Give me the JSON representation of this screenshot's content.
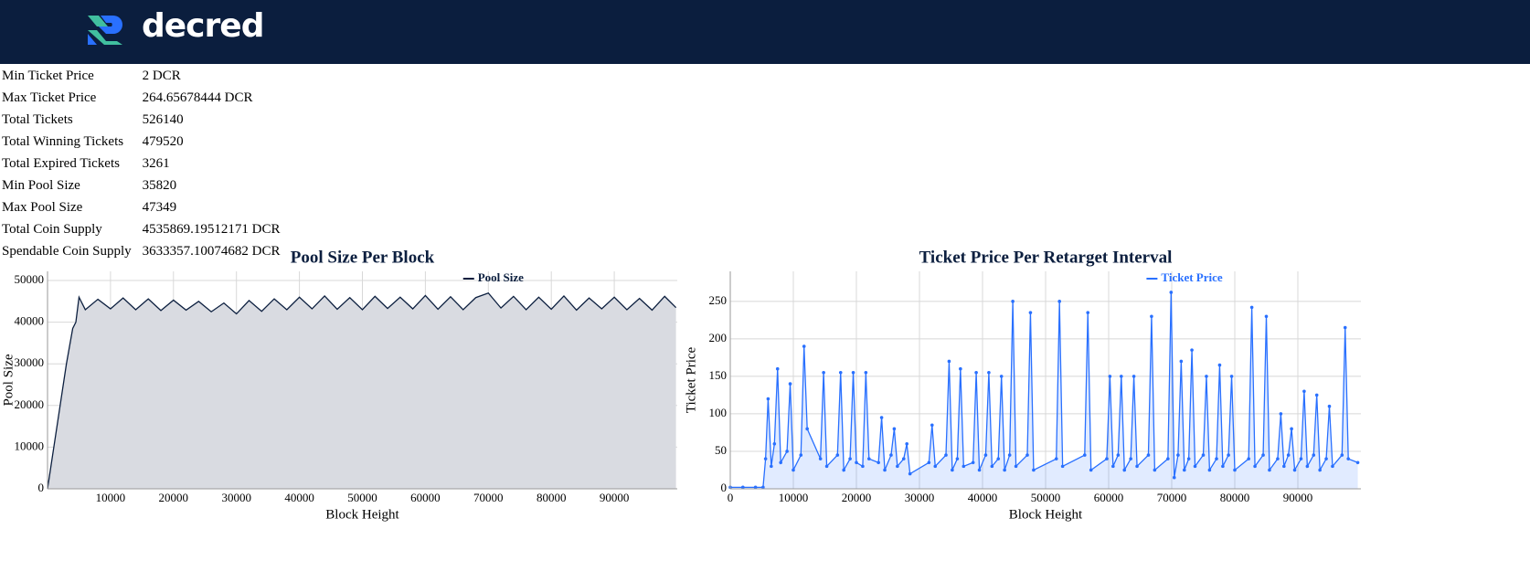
{
  "header": {
    "logo_text": "decred"
  },
  "stats": {
    "rows": [
      [
        "Min Ticket Price",
        "2 DCR"
      ],
      [
        "Max Ticket Price",
        "264.65678444 DCR"
      ],
      [
        "Total Tickets",
        "526140"
      ],
      [
        "Total Winning Tickets",
        "479520"
      ],
      [
        "Total Expired Tickets",
        "3261"
      ],
      [
        "Min Pool Size",
        "35820"
      ],
      [
        "Max Pool Size",
        "47349"
      ],
      [
        "Total Coin Supply",
        "4535869.19512171 DCR"
      ],
      [
        "Spendable Coin Supply",
        "3633357.10074682 DCR"
      ]
    ]
  },
  "chart_data": [
    {
      "type": "area",
      "title": "Pool Size Per Block",
      "x_label": "Block Height",
      "y_label": "Pool Size",
      "xlim": [
        0,
        100000
      ],
      "ylim": [
        0,
        52200
      ],
      "xticks": [
        10000,
        20000,
        30000,
        40000,
        50000,
        60000,
        70000,
        80000,
        90000
      ],
      "yticks": [
        0,
        10000,
        20000,
        30000,
        40000,
        50000
      ],
      "grid": true,
      "legend": "top-right",
      "markers": false,
      "x": [
        0,
        1000,
        2000,
        3000,
        4000,
        4500,
        5000,
        6000,
        8000,
        10000,
        12000,
        14000,
        16000,
        18000,
        20000,
        22000,
        24000,
        26000,
        28000,
        30000,
        32000,
        34000,
        36000,
        38000,
        40000,
        42000,
        44000,
        46000,
        48000,
        50000,
        52000,
        54000,
        56000,
        58000,
        60000,
        62000,
        64000,
        66000,
        68000,
        70000,
        72000,
        74000,
        76000,
        78000,
        80000,
        82000,
        84000,
        86000,
        88000,
        90000,
        92000,
        94000,
        96000,
        98000,
        99800
      ],
      "series": [
        {
          "name": "Pool Size",
          "color": "#0c1f3f",
          "area_color": "#d9dbe1",
          "values": [
            0,
            10000,
            20000,
            30000,
            38500,
            40000,
            46000,
            43000,
            45500,
            43200,
            45800,
            43000,
            45600,
            42800,
            45300,
            42900,
            45000,
            42500,
            44600,
            42000,
            45200,
            42600,
            45600,
            43000,
            46000,
            43200,
            46300,
            43100,
            45900,
            43000,
            46200,
            43300,
            46000,
            43200,
            46400,
            43100,
            46100,
            43000,
            45900,
            47000,
            43400,
            46200,
            43000,
            46000,
            43100,
            46300,
            42900,
            45800,
            43200,
            46000,
            43000,
            45700,
            42900,
            46200,
            43500
          ]
        }
      ]
    },
    {
      "type": "line",
      "title": "Ticket Price Per Retarget Interval",
      "x_label": "Block Height",
      "y_label": "Ticket Price",
      "xlim": [
        0,
        100000
      ],
      "ylim": [
        0,
        290
      ],
      "xticks": [
        0,
        10000,
        20000,
        30000,
        40000,
        50000,
        60000,
        70000,
        80000,
        90000
      ],
      "yticks": [
        0,
        50,
        100,
        150,
        200,
        250
      ],
      "grid": true,
      "legend": "top-right",
      "markers": true,
      "x": [
        0,
        2000,
        4000,
        5200,
        5600,
        6000,
        6500,
        7000,
        7500,
        8000,
        9000,
        9500,
        10000,
        11200,
        11700,
        12200,
        14300,
        14800,
        15300,
        17000,
        17500,
        18000,
        19000,
        19500,
        20000,
        21000,
        21500,
        22000,
        23500,
        24000,
        24500,
        25500,
        26000,
        26500,
        27500,
        28000,
        28500,
        31500,
        32000,
        32500,
        34200,
        34700,
        35200,
        36000,
        36500,
        37000,
        38500,
        39000,
        39500,
        40500,
        41000,
        41500,
        42500,
        43000,
        43500,
        44300,
        44800,
        45300,
        47100,
        47600,
        48100,
        51700,
        52200,
        52700,
        56200,
        56700,
        57200,
        59700,
        60200,
        60700,
        61500,
        62000,
        62500,
        63500,
        64000,
        64500,
        66300,
        66800,
        67300,
        69400,
        69900,
        70400,
        71000,
        71500,
        72000,
        72700,
        73200,
        73700,
        75000,
        75500,
        76000,
        77100,
        77600,
        78100,
        79000,
        79500,
        80000,
        82200,
        82700,
        83200,
        84500,
        85000,
        85500,
        86800,
        87300,
        87800,
        88500,
        89000,
        89500,
        90500,
        91000,
        91500,
        92500,
        93000,
        93500,
        94500,
        95000,
        95500,
        97000,
        97500,
        98000,
        99500
      ],
      "series": [
        {
          "name": "Ticket Price",
          "color": "#2970ff",
          "area_color": "rgba(41,112,255,0.14)",
          "values": [
            2,
            2,
            2,
            2,
            40,
            120,
            30,
            60,
            160,
            35,
            50,
            140,
            25,
            45,
            190,
            80,
            40,
            155,
            30,
            45,
            155,
            25,
            40,
            155,
            35,
            30,
            155,
            40,
            35,
            95,
            25,
            45,
            80,
            30,
            40,
            60,
            20,
            35,
            85,
            30,
            45,
            170,
            25,
            40,
            160,
            30,
            35,
            155,
            25,
            45,
            155,
            30,
            40,
            150,
            25,
            45,
            250,
            30,
            45,
            235,
            25,
            40,
            250,
            30,
            45,
            235,
            25,
            40,
            150,
            30,
            45,
            150,
            25,
            40,
            150,
            30,
            45,
            230,
            25,
            40,
            262,
            15,
            45,
            170,
            25,
            40,
            185,
            30,
            45,
            150,
            25,
            40,
            165,
            30,
            45,
            150,
            25,
            40,
            242,
            30,
            45,
            230,
            25,
            40,
            100,
            30,
            45,
            80,
            25,
            40,
            130,
            30,
            45,
            125,
            25,
            40,
            110,
            30,
            45,
            215,
            40,
            35
          ]
        }
      ]
    }
  ]
}
